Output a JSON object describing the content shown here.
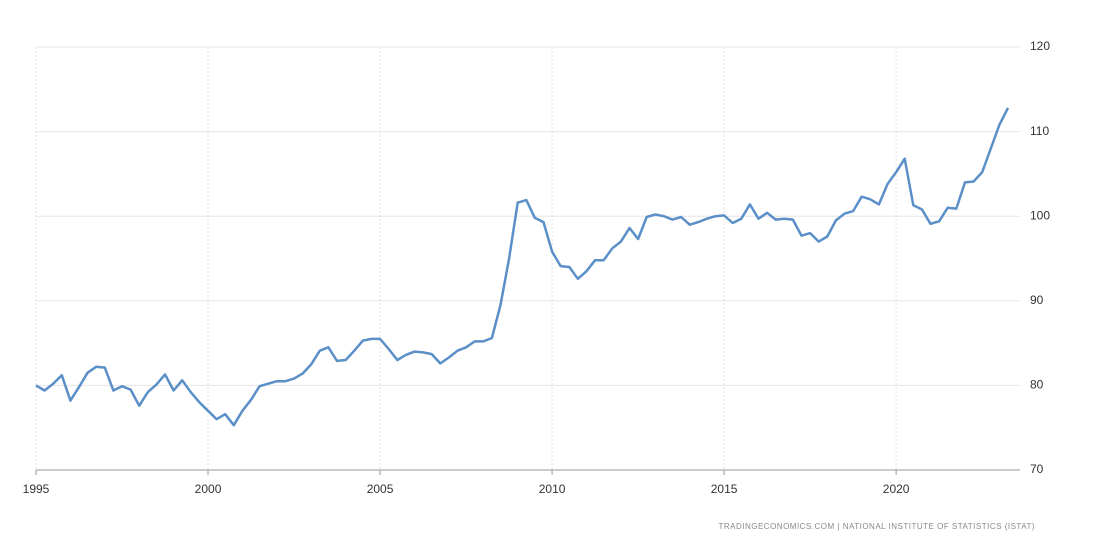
{
  "chart_data": {
    "type": "line",
    "x": [
      1995.0,
      1995.25,
      1995.5,
      1995.75,
      1996.0,
      1996.25,
      1996.5,
      1996.75,
      1997.0,
      1997.25,
      1997.5,
      1997.75,
      1998.0,
      1998.25,
      1998.5,
      1998.75,
      1999.0,
      1999.25,
      1999.5,
      1999.75,
      2000.0,
      2000.25,
      2000.5,
      2000.75,
      2001.0,
      2001.25,
      2001.5,
      2001.75,
      2002.0,
      2002.25,
      2002.5,
      2002.75,
      2003.0,
      2003.25,
      2003.5,
      2003.75,
      2004.0,
      2004.25,
      2004.5,
      2004.75,
      2005.0,
      2005.25,
      2005.5,
      2005.75,
      2006.0,
      2006.25,
      2006.5,
      2006.75,
      2007.0,
      2007.25,
      2007.5,
      2007.75,
      2008.0,
      2008.25,
      2008.5,
      2008.75,
      2009.0,
      2009.25,
      2009.5,
      2009.75,
      2010.0,
      2010.25,
      2010.5,
      2010.75,
      2011.0,
      2011.25,
      2011.5,
      2011.75,
      2012.0,
      2012.25,
      2012.5,
      2012.75,
      2013.0,
      2013.25,
      2013.5,
      2013.75,
      2014.0,
      2014.25,
      2014.5,
      2014.75,
      2015.0,
      2015.25,
      2015.5,
      2015.75,
      2016.0,
      2016.25,
      2016.5,
      2016.75,
      2017.0,
      2017.25,
      2017.5,
      2017.75,
      2018.0,
      2018.25,
      2018.5,
      2018.75,
      2019.0,
      2019.25,
      2019.5,
      2019.75,
      2020.0,
      2020.25,
      2020.5,
      2020.75,
      2021.0,
      2021.25,
      2021.5,
      2021.75,
      2022.0,
      2022.25,
      2022.5,
      2022.75,
      2023.0,
      2023.25
    ],
    "series": [
      {
        "color": "#5b8fc7",
        "values": [
          80.0,
          79.4,
          80.2,
          81.2,
          78.2,
          79.8,
          81.5,
          82.2,
          82.1,
          79.4,
          79.9,
          79.5,
          77.6,
          79.2,
          80.1,
          81.3,
          79.4,
          80.6,
          79.2,
          78.0,
          77.0,
          76.0,
          76.6,
          75.3,
          77.0,
          78.3,
          79.9,
          80.2,
          80.5,
          80.5,
          80.8,
          81.4,
          82.5,
          84.1,
          84.5,
          82.9,
          83.0,
          84.1,
          85.3,
          85.5,
          85.5,
          84.3,
          83.0,
          83.6,
          84.0,
          83.9,
          83.7,
          82.6,
          83.3,
          84.1,
          84.5,
          85.2,
          85.2,
          85.6,
          89.5,
          95.0,
          101.6,
          101.9,
          99.8,
          99.3,
          95.8,
          94.1,
          94.0,
          92.6,
          93.5,
          94.8,
          94.8,
          96.2,
          97.0,
          98.6,
          97.3,
          99.9,
          100.2,
          100.0,
          99.6,
          99.9,
          99.0,
          99.3,
          99.7,
          100.0,
          100.1,
          99.2,
          99.7,
          101.4,
          99.7,
          100.4,
          99.6,
          99.7,
          99.6,
          97.7,
          98.0,
          97.0,
          97.6,
          99.5,
          100.3,
          100.6,
          102.3,
          102.0,
          101.4,
          103.8,
          105.2,
          106.8,
          101.3,
          100.8,
          99.1,
          99.4,
          101.0,
          100.9,
          104.0,
          104.1,
          105.2,
          108.0,
          110.8,
          112.8
        ]
      }
    ],
    "xlim": [
      1995,
      2023.6
    ],
    "xticks": [
      1995,
      2000,
      2005,
      2010,
      2015,
      2020
    ],
    "ylim": [
      70,
      120
    ],
    "yticks": [
      70,
      80,
      90,
      100,
      110,
      120
    ],
    "grid": true,
    "source": "TRADINGECONOMICS.COM | NATIONAL INSTITUTE OF STATISTICS (ISTAT)"
  }
}
